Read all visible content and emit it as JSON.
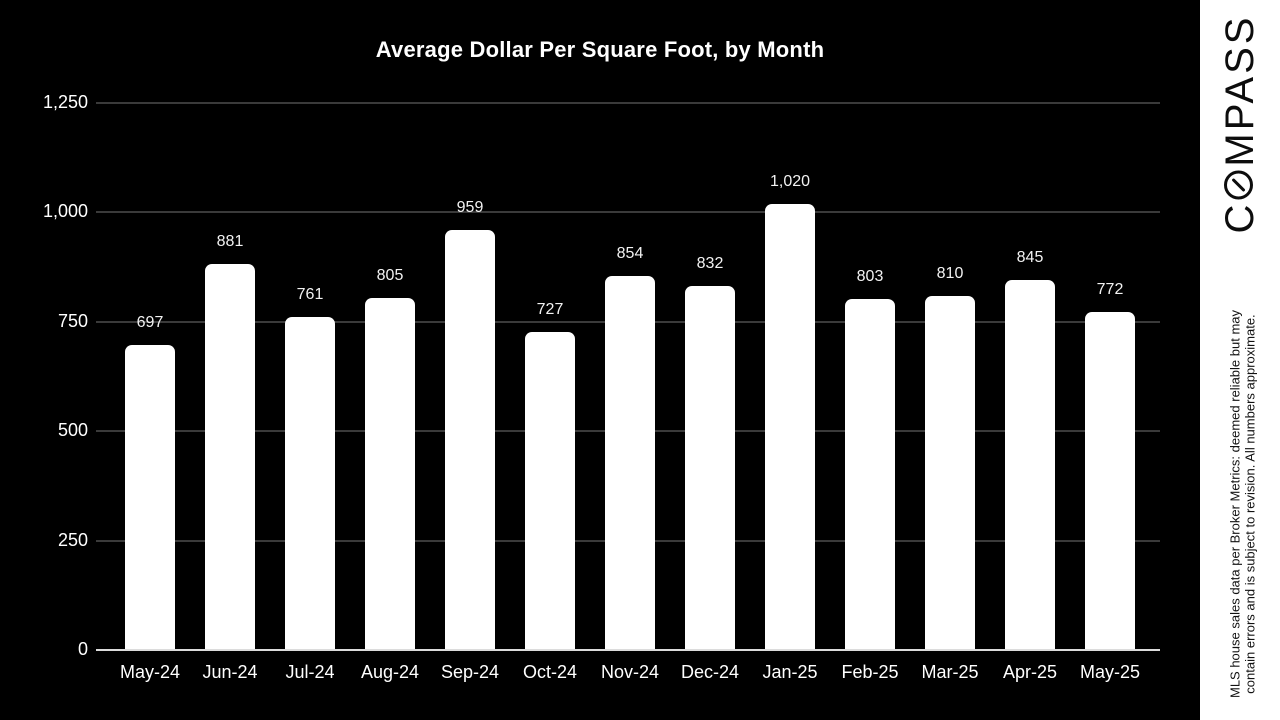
{
  "slide": {
    "background": "#000000",
    "text_color": "#ffffff"
  },
  "chart_data": {
    "type": "bar",
    "title": "Average Dollar Per Square Foot, by Month",
    "categories": [
      "May-24",
      "Jun-24",
      "Jul-24",
      "Aug-24",
      "Sep-24",
      "Oct-24",
      "Nov-24",
      "Dec-24",
      "Jan-25",
      "Feb-25",
      "Mar-25",
      "Apr-25",
      "May-25"
    ],
    "values": [
      697,
      881,
      761,
      805,
      959,
      727,
      854,
      832,
      1020,
      803,
      810,
      845,
      772
    ],
    "value_labels": [
      "697",
      "881",
      "761",
      "805",
      "959",
      "727",
      "854",
      "832",
      "1,020",
      "803",
      "810",
      "845",
      "772"
    ],
    "xlabel": "",
    "ylabel": "",
    "ylim": [
      0,
      1250
    ],
    "yticks": [
      {
        "value": 0,
        "label": "0"
      },
      {
        "value": 250,
        "label": "250"
      },
      {
        "value": 500,
        "label": "500"
      },
      {
        "value": 750,
        "label": "750"
      },
      {
        "value": 1000,
        "label": "1,000"
      },
      {
        "value": 1250,
        "label": "1,250"
      }
    ],
    "grid": "horizontal",
    "legend": "none",
    "bar_color": "#ffffff",
    "gridline_color": "#3a3a3a",
    "axis_line_color": "#dcdcdc",
    "text_color": "#ffffff"
  },
  "sidebar": {
    "background": "#ffffff",
    "logo_name": "COMPASS",
    "logo_text_before_o": "C",
    "logo_text_after_o": "MPASS",
    "logo_color": "#0d0d0d",
    "disclaimer_line1": "MLS house sales data per Broker Metrics: deemed reliable but may",
    "disclaimer_line2": "contain errors and is subject to revision. All numbers approximate."
  }
}
